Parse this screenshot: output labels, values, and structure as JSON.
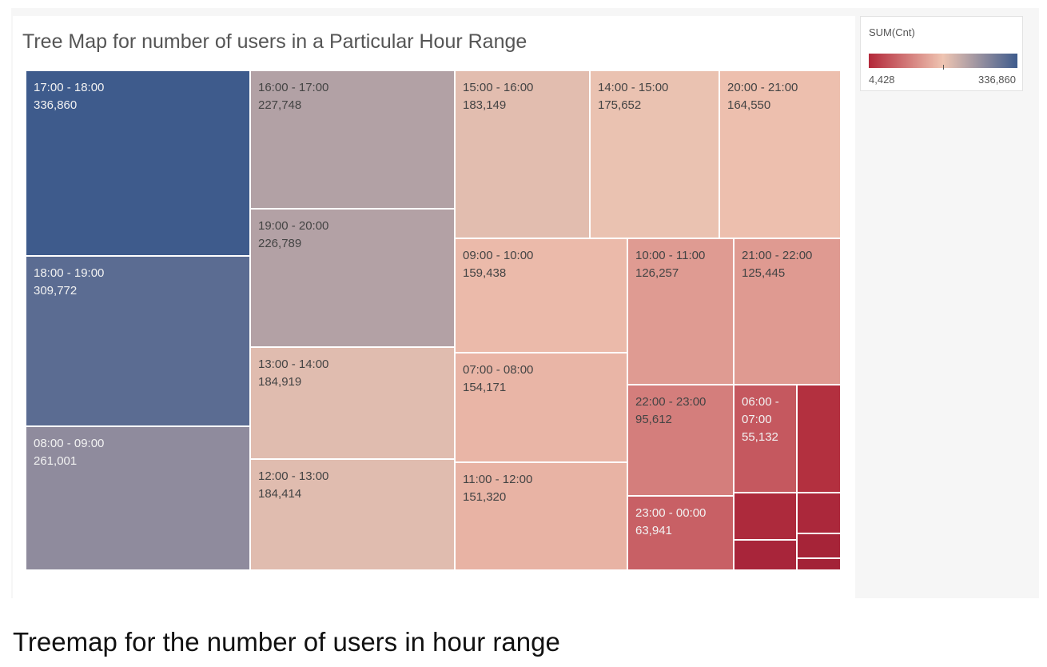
{
  "caption": "Treemap for the number of users in hour range",
  "chart_data": {
    "type": "treemap",
    "title": "Tree Map for number of users in a Particular Hour Range",
    "measure": "SUM(Cnt)",
    "color_range": {
      "min": 4428,
      "max": 336860,
      "min_label": "4,428",
      "max_label": "336,860"
    },
    "colors": {
      "low": "#b3283a",
      "mid": "#efc5b2",
      "high": "#3e5b8c"
    },
    "items": [
      {
        "label": "17:00 - 18:00",
        "value": 336860,
        "value_label": "336,860"
      },
      {
        "label": "18:00 - 19:00",
        "value": 309772,
        "value_label": "309,772"
      },
      {
        "label": "08:00 - 09:00",
        "value": 261001,
        "value_label": "261,001"
      },
      {
        "label": "16:00 - 17:00",
        "value": 227748,
        "value_label": "227,748"
      },
      {
        "label": "19:00 - 20:00",
        "value": 226789,
        "value_label": "226,789"
      },
      {
        "label": "13:00 - 14:00",
        "value": 184919,
        "value_label": "184,919"
      },
      {
        "label": "12:00 - 13:00",
        "value": 184414,
        "value_label": "184,414"
      },
      {
        "label": "15:00 - 16:00",
        "value": 183149,
        "value_label": "183,149"
      },
      {
        "label": "14:00 - 15:00",
        "value": 175652,
        "value_label": "175,652"
      },
      {
        "label": "20:00 - 21:00",
        "value": 164550,
        "value_label": "164,550"
      },
      {
        "label": "09:00 - 10:00",
        "value": 159438,
        "value_label": "159,438"
      },
      {
        "label": "07:00 - 08:00",
        "value": 154171,
        "value_label": "154,171"
      },
      {
        "label": "11:00 - 12:00",
        "value": 151320,
        "value_label": "151,320"
      },
      {
        "label": "10:00 - 11:00",
        "value": 126257,
        "value_label": "126,257"
      },
      {
        "label": "21:00 - 22:00",
        "value": 125445,
        "value_label": "125,445"
      },
      {
        "label": "22:00 - 23:00",
        "value": 95612,
        "value_label": "95,612"
      },
      {
        "label": "23:00 - 00:00",
        "value": 63941,
        "value_label": "63,941"
      },
      {
        "label": "06:00 - 07:00",
        "value": 55132,
        "value_label": "55,132"
      }
    ]
  }
}
